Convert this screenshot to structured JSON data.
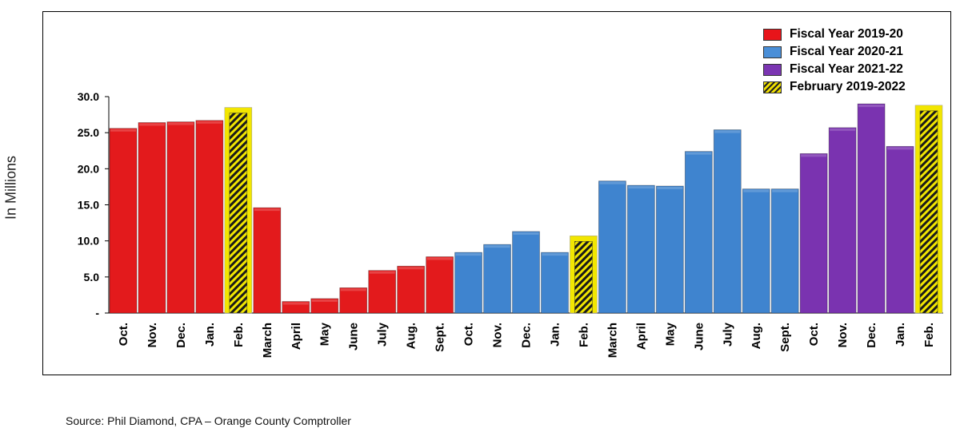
{
  "chart_data": {
    "type": "bar",
    "title": "",
    "xlabel": "",
    "ylabel": "In Millions",
    "ylim": [
      0,
      30
    ],
    "yticks": [
      {
        "value": 30,
        "label": "30.0"
      },
      {
        "value": 25,
        "label": "25.0"
      },
      {
        "value": 20,
        "label": "20.0"
      },
      {
        "value": 15,
        "label": "15.0"
      },
      {
        "value": 10,
        "label": "10.0"
      },
      {
        "value": 5,
        "label": "5.0"
      },
      {
        "value": 0,
        "label": "-"
      }
    ],
    "grid": false,
    "legend_position": "top-right",
    "legend": [
      {
        "label": "Fiscal Year 2019-20",
        "style": "red"
      },
      {
        "label": "Fiscal Year 2020-21",
        "style": "blue"
      },
      {
        "label": "Fiscal Year 2021-22",
        "style": "purple"
      },
      {
        "label": "February 2019-2022",
        "style": "hatch"
      }
    ],
    "colors": {
      "red": "#e31a1c",
      "blue": "#3f84cf",
      "purple": "#7a33b0",
      "hatch_fill": "#f2e600",
      "hatch_line": "#1a1a1a"
    },
    "bars": [
      {
        "label": "Oct.",
        "value": 25.6,
        "group": "red"
      },
      {
        "label": "Nov.",
        "value": 26.4,
        "group": "red"
      },
      {
        "label": "Dec.",
        "value": 26.5,
        "group": "red"
      },
      {
        "label": "Jan.",
        "value": 26.7,
        "group": "red"
      },
      {
        "label": "Feb.",
        "value": 28.5,
        "group": "hatch"
      },
      {
        "label": "March",
        "value": 14.6,
        "group": "red"
      },
      {
        "label": "April",
        "value": 1.6,
        "group": "red"
      },
      {
        "label": "May",
        "value": 2.0,
        "group": "red"
      },
      {
        "label": "June",
        "value": 3.5,
        "group": "red"
      },
      {
        "label": "July",
        "value": 5.9,
        "group": "red"
      },
      {
        "label": "Aug.",
        "value": 6.5,
        "group": "red"
      },
      {
        "label": "Sept.",
        "value": 7.8,
        "group": "red"
      },
      {
        "label": "Oct.",
        "value": 8.4,
        "group": "blue"
      },
      {
        "label": "Nov.",
        "value": 9.5,
        "group": "blue"
      },
      {
        "label": "Dec.",
        "value": 11.3,
        "group": "blue"
      },
      {
        "label": "Jan.",
        "value": 8.4,
        "group": "blue"
      },
      {
        "label": "Feb.",
        "value": 10.7,
        "group": "hatch"
      },
      {
        "label": "March",
        "value": 18.3,
        "group": "blue"
      },
      {
        "label": "April",
        "value": 17.7,
        "group": "blue"
      },
      {
        "label": "May",
        "value": 17.6,
        "group": "blue"
      },
      {
        "label": "June",
        "value": 22.4,
        "group": "blue"
      },
      {
        "label": "July",
        "value": 25.4,
        "group": "blue"
      },
      {
        "label": "Aug.",
        "value": 17.2,
        "group": "blue"
      },
      {
        "label": "Sept.",
        "value": 17.2,
        "group": "blue"
      },
      {
        "label": "Oct.",
        "value": 22.1,
        "group": "purple"
      },
      {
        "label": "Nov.",
        "value": 25.7,
        "group": "purple"
      },
      {
        "label": "Dec.",
        "value": 29.0,
        "group": "purple"
      },
      {
        "label": "Jan.",
        "value": 23.1,
        "group": "purple"
      },
      {
        "label": "Feb.",
        "value": 28.8,
        "group": "hatch"
      }
    ]
  },
  "source": "Source:  Phil Diamond, CPA – Orange County Comptroller"
}
